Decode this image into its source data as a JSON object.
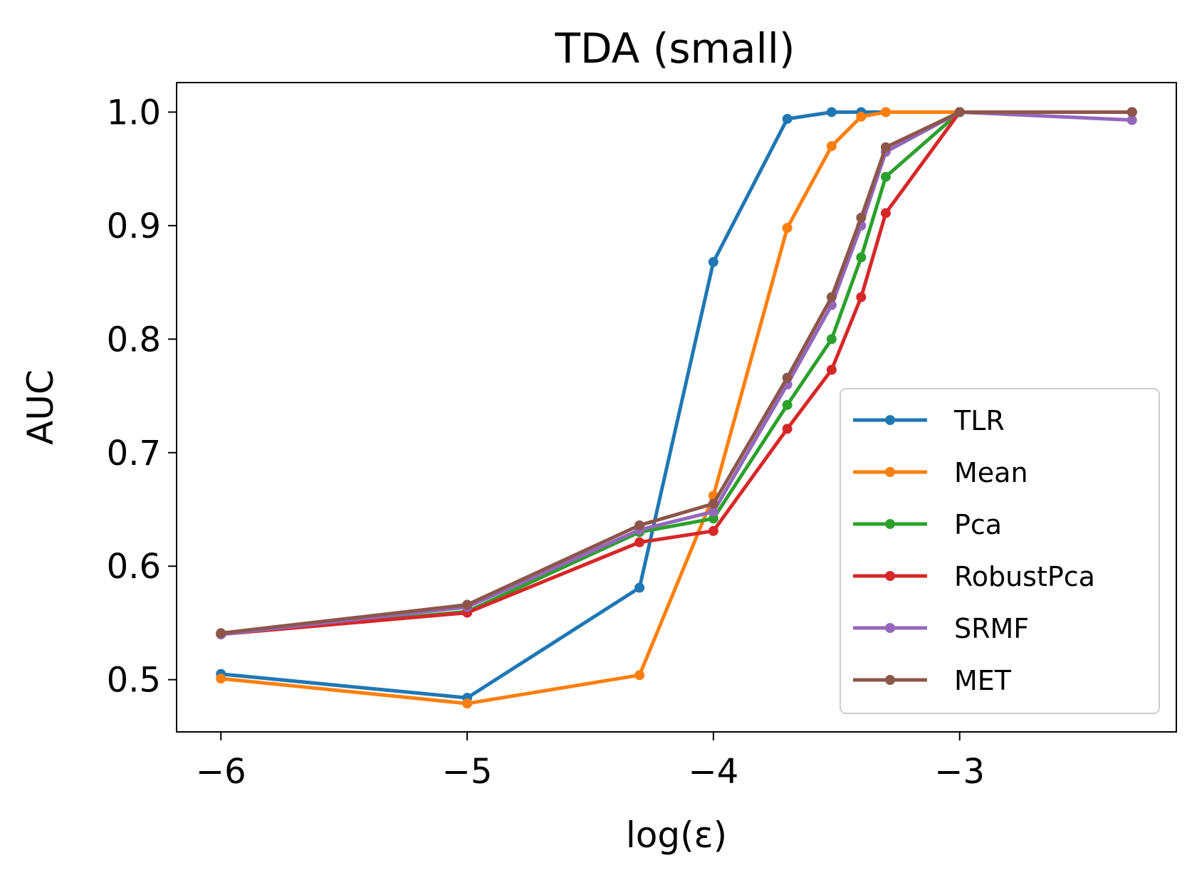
{
  "chart_data": {
    "type": "line",
    "title": "TDA (small)",
    "xlabel": "log(ε)",
    "ylabel": "AUC",
    "xlim": [
      -6.18,
      -2.12
    ],
    "ylim": [
      0.454,
      1.026
    ],
    "xticks": [
      -6,
      -5,
      -4,
      -3
    ],
    "xtick_labels": [
      "−6",
      "−5",
      "−4",
      "−3"
    ],
    "yticks": [
      0.5,
      0.6,
      0.7,
      0.8,
      0.9,
      1.0
    ],
    "ytick_labels": [
      "0.5",
      "0.6",
      "0.7",
      "0.8",
      "0.9",
      "1.0"
    ],
    "grid": false,
    "legend_position": "lower-right",
    "x": [
      -6,
      -5,
      -4.3,
      -4,
      -3.7,
      -3.52,
      -3.4,
      -3.3,
      -3,
      -2.3
    ],
    "series": [
      {
        "name": "TLR",
        "color": "#1f77b4",
        "values": [
          0.505,
          0.484,
          0.581,
          0.868,
          0.994,
          1.0,
          1.0,
          1.0,
          1.0,
          1.0
        ]
      },
      {
        "name": "Mean",
        "color": "#ff7f0e",
        "values": [
          0.501,
          0.479,
          0.504,
          0.662,
          0.898,
          0.97,
          0.996,
          1.0,
          1.0,
          1.0
        ]
      },
      {
        "name": "Pca",
        "color": "#2ca02c",
        "values": [
          0.54,
          0.56,
          0.63,
          0.642,
          0.742,
          0.8,
          0.872,
          0.943,
          1.0,
          1.0
        ]
      },
      {
        "name": "RobustPca",
        "color": "#d62728",
        "values": [
          0.54,
          0.559,
          0.621,
          0.631,
          0.721,
          0.773,
          0.837,
          0.911,
          1.0,
          1.0
        ]
      },
      {
        "name": "SRMF",
        "color": "#9467bd",
        "values": [
          0.54,
          0.564,
          0.632,
          0.648,
          0.76,
          0.83,
          0.9,
          0.965,
          1.0,
          0.993
        ]
      },
      {
        "name": "MET",
        "color": "#8c564b",
        "values": [
          0.541,
          0.566,
          0.636,
          0.655,
          0.766,
          0.837,
          0.907,
          0.969,
          1.0,
          1.0
        ]
      }
    ]
  }
}
